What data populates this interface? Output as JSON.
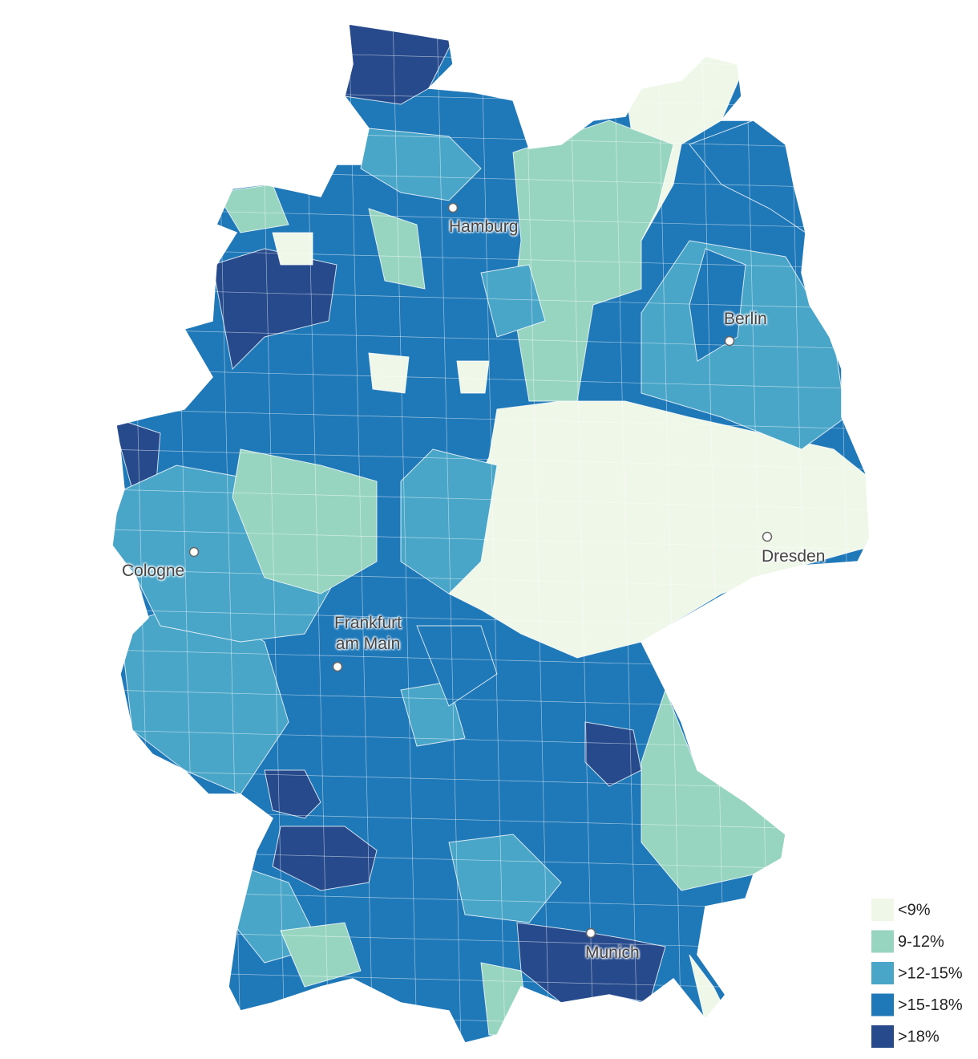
{
  "map": {
    "cities": [
      "Hamburg",
      "Berlin",
      "Dresden",
      "Cologne",
      "Frankfurt am Main",
      "Munich"
    ],
    "legend": [
      {
        "label": "<9%",
        "color": "#eef7e8"
      },
      {
        "label": "9-12%",
        "color": "#97d5c0"
      },
      {
        "label": ">12-15%",
        "color": "#4aa6c9"
      },
      {
        "label": ">15-18%",
        "color": "#1f78b8"
      },
      {
        "label": ">18%",
        "color": "#264a8c"
      }
    ]
  }
}
